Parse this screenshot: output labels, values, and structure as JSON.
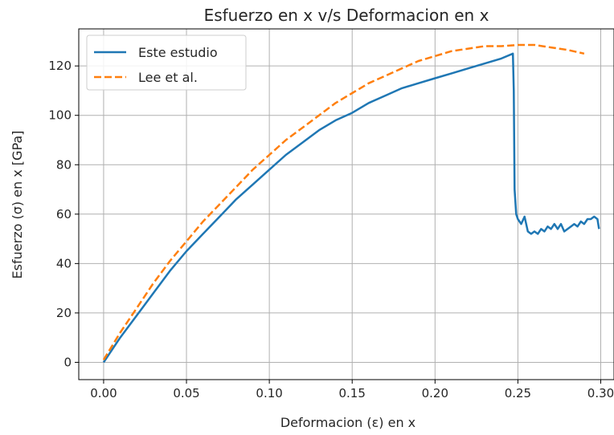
{
  "chart_data": {
    "type": "line",
    "title": "Esfuerzo en x v/s Deformacion en x",
    "xlabel": "Deformacion (ε) en x",
    "ylabel": "Esfuerzo (σ) en x [GPa]",
    "xlim": [
      -0.015,
      0.308
    ],
    "ylim": [
      -7,
      135
    ],
    "xticks": [
      0.0,
      0.05,
      0.1,
      0.15,
      0.2,
      0.25,
      0.3
    ],
    "xtick_labels": [
      "0.00",
      "0.05",
      "0.10",
      "0.15",
      "0.20",
      "0.25",
      "0.30"
    ],
    "yticks": [
      0,
      20,
      40,
      60,
      80,
      100,
      120
    ],
    "ytick_labels": [
      "0",
      "20",
      "40",
      "60",
      "80",
      "100",
      "120"
    ],
    "grid": true,
    "legend_position": "top-left",
    "series": [
      {
        "name": "Este estudio",
        "color": "#1f77b4",
        "style": "solid",
        "x": [
          0.0,
          0.01,
          0.02,
          0.03,
          0.04,
          0.05,
          0.06,
          0.07,
          0.08,
          0.09,
          0.1,
          0.11,
          0.12,
          0.13,
          0.14,
          0.15,
          0.16,
          0.17,
          0.18,
          0.19,
          0.2,
          0.21,
          0.22,
          0.23,
          0.24,
          0.247,
          0.2475,
          0.248,
          0.249,
          0.25,
          0.252,
          0.254,
          0.256,
          0.258,
          0.26,
          0.262,
          0.264,
          0.266,
          0.268,
          0.27,
          0.272,
          0.274,
          0.276,
          0.278,
          0.28,
          0.282,
          0.284,
          0.286,
          0.288,
          0.29,
          0.292,
          0.294,
          0.296,
          0.298,
          0.299
        ],
        "y": [
          0,
          10,
          19,
          28,
          37,
          45,
          52,
          59,
          66,
          72,
          78,
          84,
          89,
          94,
          98,
          101,
          105,
          108,
          111,
          113,
          115,
          117,
          119,
          121,
          123,
          125,
          110,
          70,
          60,
          58,
          56,
          59,
          53,
          52,
          53,
          52,
          54,
          53,
          55,
          54,
          56,
          54,
          56,
          53,
          54,
          55,
          56,
          55,
          57,
          56,
          58,
          58,
          59,
          58,
          54
        ]
      },
      {
        "name": "Lee et al.",
        "color": "#ff7f0e",
        "style": "dashed",
        "x": [
          0.0,
          0.01,
          0.02,
          0.03,
          0.04,
          0.05,
          0.06,
          0.07,
          0.08,
          0.09,
          0.1,
          0.11,
          0.12,
          0.13,
          0.14,
          0.15,
          0.16,
          0.17,
          0.18,
          0.19,
          0.2,
          0.21,
          0.22,
          0.23,
          0.24,
          0.25,
          0.26,
          0.27,
          0.28,
          0.29
        ],
        "y": [
          1,
          12,
          22,
          32,
          41,
          49,
          57,
          64,
          71,
          78,
          84,
          90,
          95,
          100,
          105,
          109,
          113,
          116,
          119,
          122,
          124,
          126,
          127,
          128,
          128,
          128.5,
          128.5,
          127.5,
          126.5,
          125
        ]
      }
    ]
  }
}
